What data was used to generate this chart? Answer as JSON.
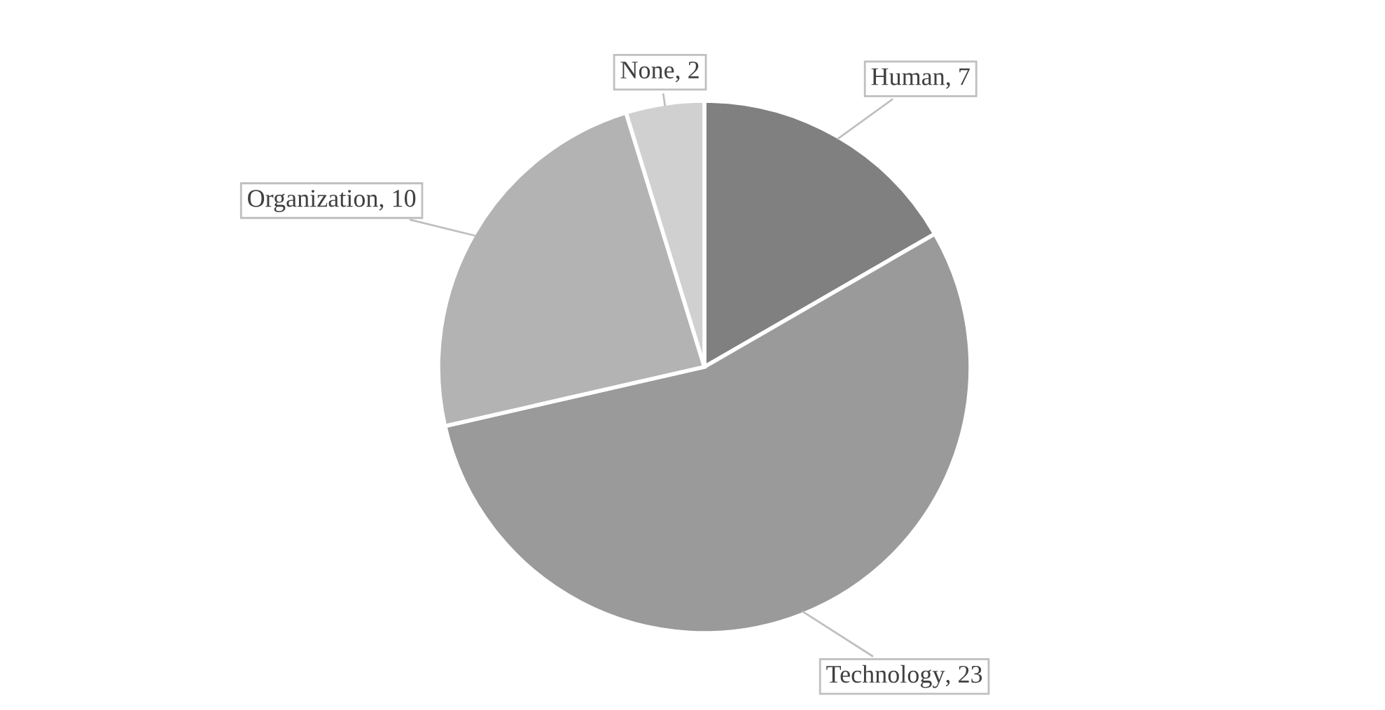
{
  "chart_data": {
    "type": "pie",
    "categories": [
      "Human",
      "Technology",
      "Organization",
      "None"
    ],
    "values": [
      7,
      23,
      10,
      2
    ],
    "value_labels": [
      ", 7",
      ", 23",
      ", 10",
      ", 2"
    ],
    "colors": [
      "#808080",
      "#9a9a9a",
      "#b3b3b3",
      "#d0d0d0"
    ]
  }
}
